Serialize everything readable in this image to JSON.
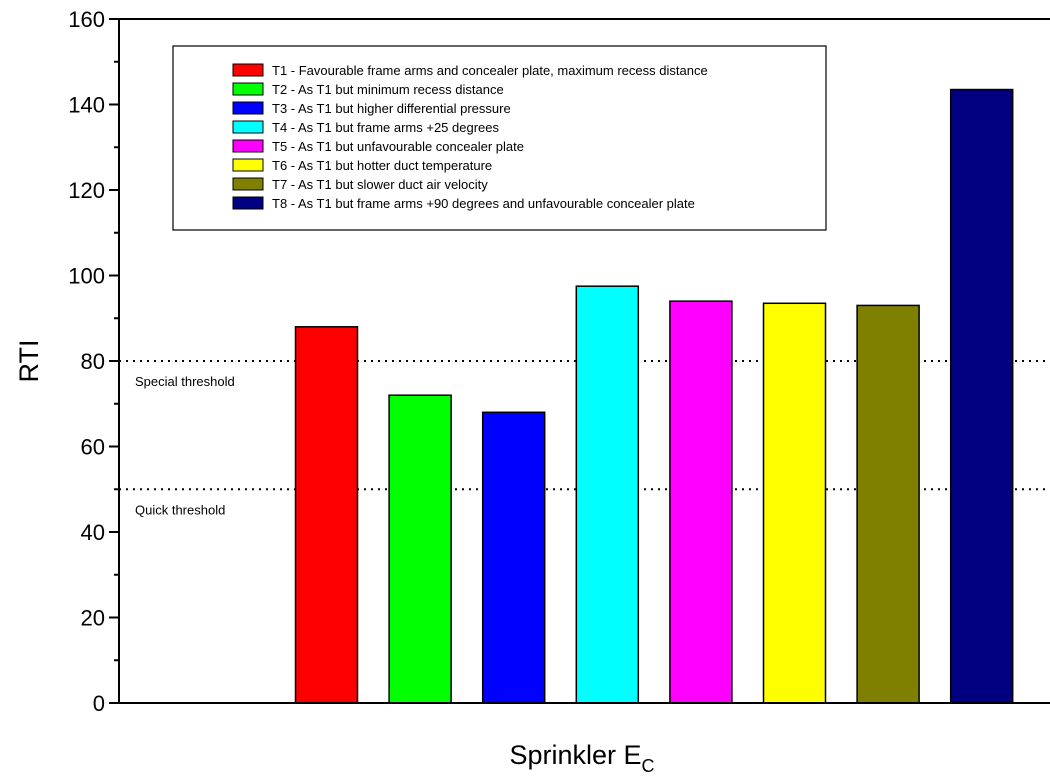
{
  "chart_data": {
    "type": "bar",
    "title": "",
    "xlabel": "Sprinkler E",
    "xlabel_subscript": "C",
    "ylabel": "RTI",
    "ylim": [
      0,
      160
    ],
    "y_ticks": [
      "0",
      "20",
      "40",
      "60",
      "80",
      "100",
      "120",
      "140",
      "160"
    ],
    "grid": false,
    "legend_position": "top",
    "bars": [
      {
        "label": "T1 - Favourable frame arms and concealer plate, maximum recess distance",
        "value": 88,
        "color": "#ff0000"
      },
      {
        "label": "T2 - As T1 but minimum recess distance",
        "value": 72,
        "color": "#00ff00"
      },
      {
        "label": "T3 - As T1 but higher differential pressure",
        "value": 68,
        "color": "#0000ff"
      },
      {
        "label": "T4 - As T1 but frame arms +25 degrees",
        "value": 97.5,
        "color": "#00ffff"
      },
      {
        "label": "T5 - As T1 but unfavourable concealer plate",
        "value": 94,
        "color": "#ff00ff"
      },
      {
        "label": "T6 - As T1 but hotter duct temperature",
        "value": 93.5,
        "color": "#ffff00"
      },
      {
        "label": "T7 - As T1 but slower duct air velocity",
        "value": 93,
        "color": "#808000"
      },
      {
        "label": "T8 - As T1 but frame arms +90 degrees and unfavourable concealer plate",
        "value": 143.5,
        "color": "#000080"
      }
    ],
    "thresholds": [
      {
        "label": "Special threshold",
        "value": 80
      },
      {
        "label": "Quick threshold",
        "value": 50
      }
    ]
  }
}
